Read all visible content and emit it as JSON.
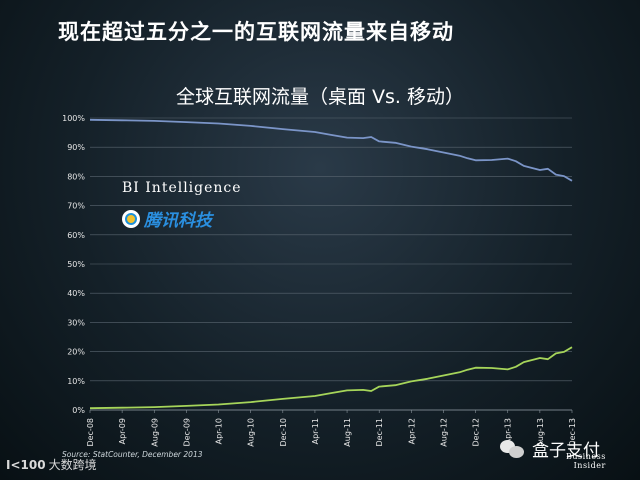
{
  "headline": "现在超过五分之一的互联网流量来自移动",
  "branding": {
    "bi_intelligence": "BI Intelligence",
    "tencent_tech": "腾讯科技",
    "source": "Source: StatCounter, December 2013",
    "footer_left_mark": "I<100",
    "footer_left_label": "大数跨境",
    "wechat_account": "盒子支付",
    "business_insider_line1": "Business",
    "business_insider_line2": "Insider"
  },
  "colors": {
    "desktop_line": "#7b95c8",
    "mobile_line": "#a6d55a",
    "grid": "#5a6670",
    "tencent_blue": "#2a8fe0"
  },
  "chart_data": {
    "type": "line",
    "title": "全球互联网流量（桌面 Vs. 移动）",
    "xlabel": "",
    "ylabel": "",
    "ylim": [
      0,
      100
    ],
    "y_ticks": [
      "0%",
      "10%",
      "20%",
      "30%",
      "40%",
      "50%",
      "60%",
      "70%",
      "80%",
      "90%",
      "100%"
    ],
    "x_tick_labels": [
      "Dec-08",
      "Apr-09",
      "Aug-09",
      "Dec-09",
      "Apr-10",
      "Aug-10",
      "Dec-10",
      "Apr-11",
      "Aug-11",
      "Dec-11",
      "Apr-12",
      "Aug-12",
      "Dec-12",
      "Apr-13",
      "Aug-13",
      "Dec-13"
    ],
    "x_tick_months": [
      0,
      4,
      8,
      12,
      16,
      20,
      24,
      28,
      32,
      36,
      40,
      44,
      48,
      52,
      56,
      60
    ],
    "grid": true,
    "legend": "none",
    "series": [
      {
        "key": "desktop",
        "months": [
          0,
          4,
          8,
          12,
          16,
          20,
          24,
          28,
          30,
          32,
          34,
          35,
          36,
          38,
          40,
          42,
          44,
          46,
          47,
          48,
          50,
          52,
          53,
          54,
          56,
          57,
          58,
          59,
          60
        ],
        "values": [
          99.4,
          99.2,
          99.0,
          98.6,
          98.1,
          97.3,
          96.2,
          95.2,
          94.2,
          93.3,
          93.1,
          93.5,
          92.0,
          91.5,
          90.2,
          89.3,
          88.2,
          87.1,
          86.2,
          85.5,
          85.6,
          86.1,
          85.2,
          83.6,
          82.2,
          82.6,
          80.6,
          80.1,
          78.5
        ]
      },
      {
        "key": "mobile",
        "months": [
          0,
          4,
          8,
          12,
          16,
          20,
          24,
          28,
          30,
          32,
          34,
          35,
          36,
          38,
          40,
          42,
          44,
          46,
          47,
          48,
          50,
          52,
          53,
          54,
          56,
          57,
          58,
          59,
          60
        ],
        "values": [
          0.6,
          0.8,
          1.0,
          1.4,
          1.9,
          2.7,
          3.8,
          4.8,
          5.8,
          6.7,
          6.9,
          6.5,
          8.0,
          8.5,
          9.8,
          10.7,
          11.8,
          12.9,
          13.8,
          14.5,
          14.4,
          13.9,
          14.8,
          16.4,
          17.8,
          17.4,
          19.4,
          19.9,
          21.5
        ]
      }
    ]
  }
}
